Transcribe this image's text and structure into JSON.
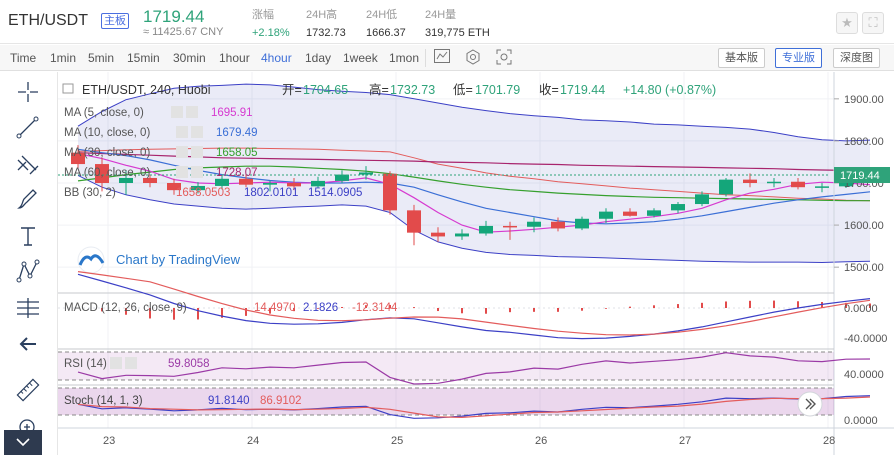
{
  "header": {
    "pair": "ETH/USDT",
    "badge": "主板",
    "price": "1719.44",
    "price_cny": "≈ 11425.67 CNY",
    "stats": [
      {
        "label": "涨幅",
        "value": "+2.18%",
        "up": true
      },
      {
        "label": "24H高",
        "value": "1732.73",
        "up": false
      },
      {
        "label": "24H低",
        "value": "1666.37",
        "up": false
      },
      {
        "label": "24H量",
        "value": "319,775 ETH",
        "up": false
      }
    ],
    "icons": [
      "star-icon",
      "fullscreen-icon"
    ]
  },
  "toolbar": {
    "timeframes": [
      "Time",
      "1min",
      "5min",
      "15min",
      "30min",
      "1hour",
      "4hour",
      "1day",
      "1week",
      "1mon"
    ],
    "active_timeframe": "4hour",
    "tools": [
      "indicator-icon",
      "settings-icon",
      "screenshot-icon"
    ],
    "views": [
      "基本版",
      "专业版",
      "深度图"
    ],
    "active_view": "专业版"
  },
  "left_tools": [
    "crosshair-icon",
    "trendline-icon",
    "pitchfork-icon",
    "brush-icon",
    "text-icon",
    "pattern-icon",
    "fib-icon",
    "back-arrow-icon",
    "ruler-icon",
    "zoom-in-icon",
    "collapse-icon"
  ],
  "chart": {
    "title": "ETH/USDT, 240, Huobi",
    "ohlc_labels": {
      "o": "开=",
      "h": "高=",
      "l": "低=",
      "c": "收="
    },
    "ohlc_values": {
      "o": "1704.65",
      "h": "1732.73",
      "l": "1701.79",
      "c": "1719.44",
      "chg": "+14.80 (+0.87%)"
    },
    "indicators": [
      {
        "name": "MA (5, close, 0)",
        "value": "1695.91",
        "color": "#d63ad0"
      },
      {
        "name": "MA (10, close, 0)",
        "value": "1679.49",
        "color": "#3b6fd6"
      },
      {
        "name": "MA (30, close, 0)",
        "value": "1658.05",
        "color": "#36a02e"
      },
      {
        "name": "MA (60, close, 0)",
        "value": "1728.07",
        "color": "#a8246d"
      }
    ],
    "bb": {
      "name": "BB (30, 2)",
      "v1": "1658.0503",
      "v2": "1802.0101",
      "v3": "1514.0905"
    },
    "watermark": "Chart by TradingView",
    "price_axis": [
      "1900.00",
      "1800.00",
      "1700.00",
      "1600.00",
      "1500.00"
    ],
    "last_price": "1719.44",
    "x_labels": [
      "23",
      "24",
      "25",
      "26",
      "27",
      "28"
    ]
  },
  "macd": {
    "name": "MACD (12, 26, close, 9)",
    "v1": "14.4970",
    "v2": "2.1826",
    "v3": "-12.3144",
    "axis": [
      "0.0000",
      "-40.0000"
    ]
  },
  "rsi": {
    "name": "RSI (14)",
    "value": "59.8058",
    "axis": [
      "40.0000"
    ]
  },
  "stoch": {
    "name": "Stoch (14, 1, 3)",
    "v1": "91.8140",
    "v2": "86.9102",
    "axis": [
      "0.0000"
    ]
  },
  "chart_data": {
    "type": "candlestick",
    "x_labels": [
      "23",
      "24",
      "25",
      "26",
      "27",
      "28"
    ],
    "ylim": [
      1460,
      1940
    ],
    "price_ticks": [
      1900,
      1800,
      1700,
      1600,
      1500
    ],
    "candles": [
      {
        "o": 1772,
        "h": 1790,
        "l": 1735,
        "c": 1745
      },
      {
        "o": 1745,
        "h": 1760,
        "l": 1680,
        "c": 1700
      },
      {
        "o": 1700,
        "h": 1730,
        "l": 1672,
        "c": 1712
      },
      {
        "o": 1712,
        "h": 1720,
        "l": 1690,
        "c": 1700
      },
      {
        "o": 1700,
        "h": 1710,
        "l": 1672,
        "c": 1683
      },
      {
        "o": 1683,
        "h": 1702,
        "l": 1675,
        "c": 1693
      },
      {
        "o": 1693,
        "h": 1718,
        "l": 1685,
        "c": 1710
      },
      {
        "o": 1710,
        "h": 1722,
        "l": 1690,
        "c": 1696
      },
      {
        "o": 1696,
        "h": 1705,
        "l": 1680,
        "c": 1700
      },
      {
        "o": 1700,
        "h": 1712,
        "l": 1683,
        "c": 1692
      },
      {
        "o": 1692,
        "h": 1715,
        "l": 1688,
        "c": 1705
      },
      {
        "o": 1705,
        "h": 1730,
        "l": 1700,
        "c": 1720
      },
      {
        "o": 1720,
        "h": 1740,
        "l": 1708,
        "c": 1725
      },
      {
        "o": 1722,
        "h": 1728,
        "l": 1625,
        "c": 1635
      },
      {
        "o": 1635,
        "h": 1648,
        "l": 1552,
        "c": 1582
      },
      {
        "o": 1582,
        "h": 1595,
        "l": 1560,
        "c": 1573
      },
      {
        "o": 1573,
        "h": 1590,
        "l": 1565,
        "c": 1580
      },
      {
        "o": 1580,
        "h": 1610,
        "l": 1575,
        "c": 1598
      },
      {
        "o": 1598,
        "h": 1608,
        "l": 1565,
        "c": 1596
      },
      {
        "o": 1596,
        "h": 1618,
        "l": 1583,
        "c": 1608
      },
      {
        "o": 1608,
        "h": 1618,
        "l": 1585,
        "c": 1592
      },
      {
        "o": 1592,
        "h": 1620,
        "l": 1588,
        "c": 1615
      },
      {
        "o": 1615,
        "h": 1640,
        "l": 1605,
        "c": 1632
      },
      {
        "o": 1632,
        "h": 1640,
        "l": 1620,
        "c": 1622
      },
      {
        "o": 1622,
        "h": 1640,
        "l": 1618,
        "c": 1635
      },
      {
        "o": 1635,
        "h": 1655,
        "l": 1628,
        "c": 1650
      },
      {
        "o": 1650,
        "h": 1680,
        "l": 1645,
        "c": 1673
      },
      {
        "o": 1673,
        "h": 1712,
        "l": 1668,
        "c": 1708
      },
      {
        "o": 1708,
        "h": 1723,
        "l": 1690,
        "c": 1700
      },
      {
        "o": 1700,
        "h": 1712,
        "l": 1690,
        "c": 1703
      },
      {
        "o": 1703,
        "h": 1712,
        "l": 1685,
        "c": 1690
      },
      {
        "o": 1690,
        "h": 1700,
        "l": 1678,
        "c": 1692
      },
      {
        "o": 1692,
        "h": 1718,
        "l": 1688,
        "c": 1712
      },
      {
        "o": 1712,
        "h": 1730,
        "l": 1701,
        "c": 1719
      }
    ],
    "bb_upper": [
      1835,
      1870,
      1898,
      1912,
      1925,
      1930,
      1932,
      1935,
      1933,
      1928,
      1922,
      1918,
      1915,
      1910,
      1900,
      1890,
      1880,
      1872,
      1865,
      1860,
      1856,
      1850,
      1848,
      1845,
      1840,
      1838,
      1835,
      1832,
      1828,
      1820,
      1810,
      1803,
      1800,
      1802
    ],
    "bb_lower": [
      1718,
      1690,
      1672,
      1660,
      1650,
      1645,
      1640,
      1638,
      1640,
      1643,
      1645,
      1648,
      1645,
      1630,
      1588,
      1560,
      1545,
      1535,
      1530,
      1528,
      1525,
      1524,
      1522,
      1520,
      1518,
      1516,
      1514,
      1513,
      1512,
      1512,
      1512,
      1511,
      1513,
      1514
    ],
    "bb_mid": [
      1775,
      1777,
      1779,
      1780,
      1781,
      1782,
      1783,
      1783,
      1782,
      1781,
      1780,
      1778,
      1776,
      1774,
      1760,
      1745,
      1735,
      1724,
      1716,
      1710,
      1703,
      1698,
      1693,
      1688,
      1684,
      1680,
      1676,
      1672,
      1670,
      1667,
      1664,
      1662,
      1659,
      1658
    ],
    "ma5": [
      1770,
      1758,
      1742,
      1728,
      1708,
      1700,
      1698,
      1700,
      1702,
      1700,
      1700,
      1705,
      1712,
      1697,
      1665,
      1630,
      1600,
      1583,
      1586,
      1590,
      1595,
      1600,
      1608,
      1614,
      1620,
      1628,
      1640,
      1660,
      1676,
      1685,
      1697,
      1702,
      1700,
      1696
    ],
    "ma10": [
      1780,
      1772,
      1765,
      1755,
      1742,
      1730,
      1720,
      1712,
      1706,
      1702,
      1700,
      1700,
      1702,
      1700,
      1690,
      1672,
      1655,
      1640,
      1630,
      1620,
      1610,
      1605,
      1603,
      1605,
      1608,
      1614,
      1622,
      1632,
      1642,
      1652,
      1660,
      1667,
      1673,
      1679
    ],
    "ma30": [
      1705,
      1712,
      1720,
      1726,
      1732,
      1736,
      1738,
      1740,
      1740,
      1738,
      1735,
      1732,
      1728,
      1722,
      1714,
      1705,
      1697,
      1690,
      1684,
      1680,
      1676,
      1673,
      1670,
      1668,
      1666,
      1665,
      1664,
      1663,
      1662,
      1661,
      1660,
      1659,
      1658,
      1658
    ],
    "ma60": [
      1772,
      1770,
      1768,
      1766,
      1764,
      1762,
      1760,
      1759,
      1758,
      1757,
      1756,
      1755,
      1754,
      1753,
      1752,
      1750,
      1749,
      1748,
      1746,
      1745,
      1744,
      1742,
      1741,
      1740,
      1739,
      1738,
      1737,
      1736,
      1735,
      1734,
      1732,
      1731,
      1730,
      1728
    ]
  }
}
